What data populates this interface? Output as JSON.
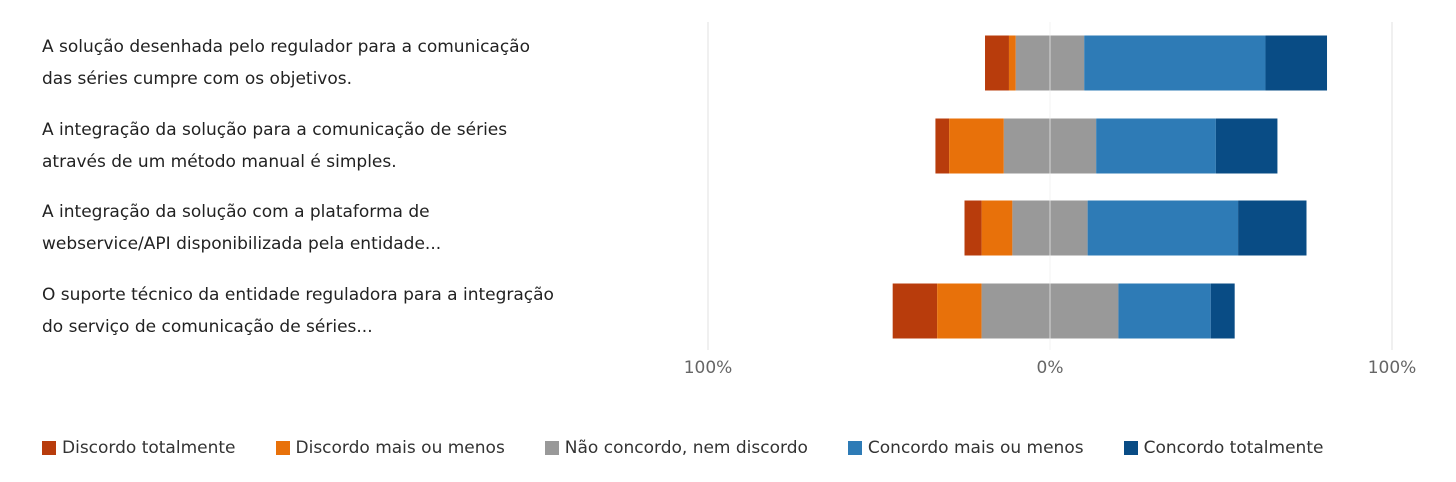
{
  "chart_data": {
    "type": "diverging-bar",
    "categories": [
      "A solução desenhada pelo regulador para a comunicação das séries cumpre com os objetivos.",
      "A integração da solução para a comunicação de séries através de um método manual é simples.",
      "A integração da solução com a plataforma de webservice/API disponibilizada pela entidade...",
      "O suporte técnico da entidade reguladora para a integração do serviço de comunicação de séries..."
    ],
    "series": [
      {
        "name": "Discordo totalmente",
        "color": "#b83c0c",
        "values": [
          7,
          4,
          5,
          13
        ]
      },
      {
        "name": "Discordo mais ou menos",
        "color": "#e8710a",
        "values": [
          2,
          16,
          9,
          13
        ]
      },
      {
        "name": "Não concordo, nem discordo",
        "color": "#999999",
        "values": [
          20,
          27,
          22,
          40
        ]
      },
      {
        "name": "Concordo mais ou menos",
        "color": "#2e7bb6",
        "values": [
          53,
          35,
          44,
          27
        ]
      },
      {
        "name": "Concordo totalmente",
        "color": "#094c85",
        "values": [
          18,
          18,
          20,
          7
        ]
      }
    ],
    "xlim": [
      -100,
      100
    ],
    "xticks": [
      {
        "value": -100,
        "label": "100%"
      },
      {
        "value": 0,
        "label": "0%"
      },
      {
        "value": 100,
        "label": "100%"
      }
    ],
    "grid": true
  }
}
